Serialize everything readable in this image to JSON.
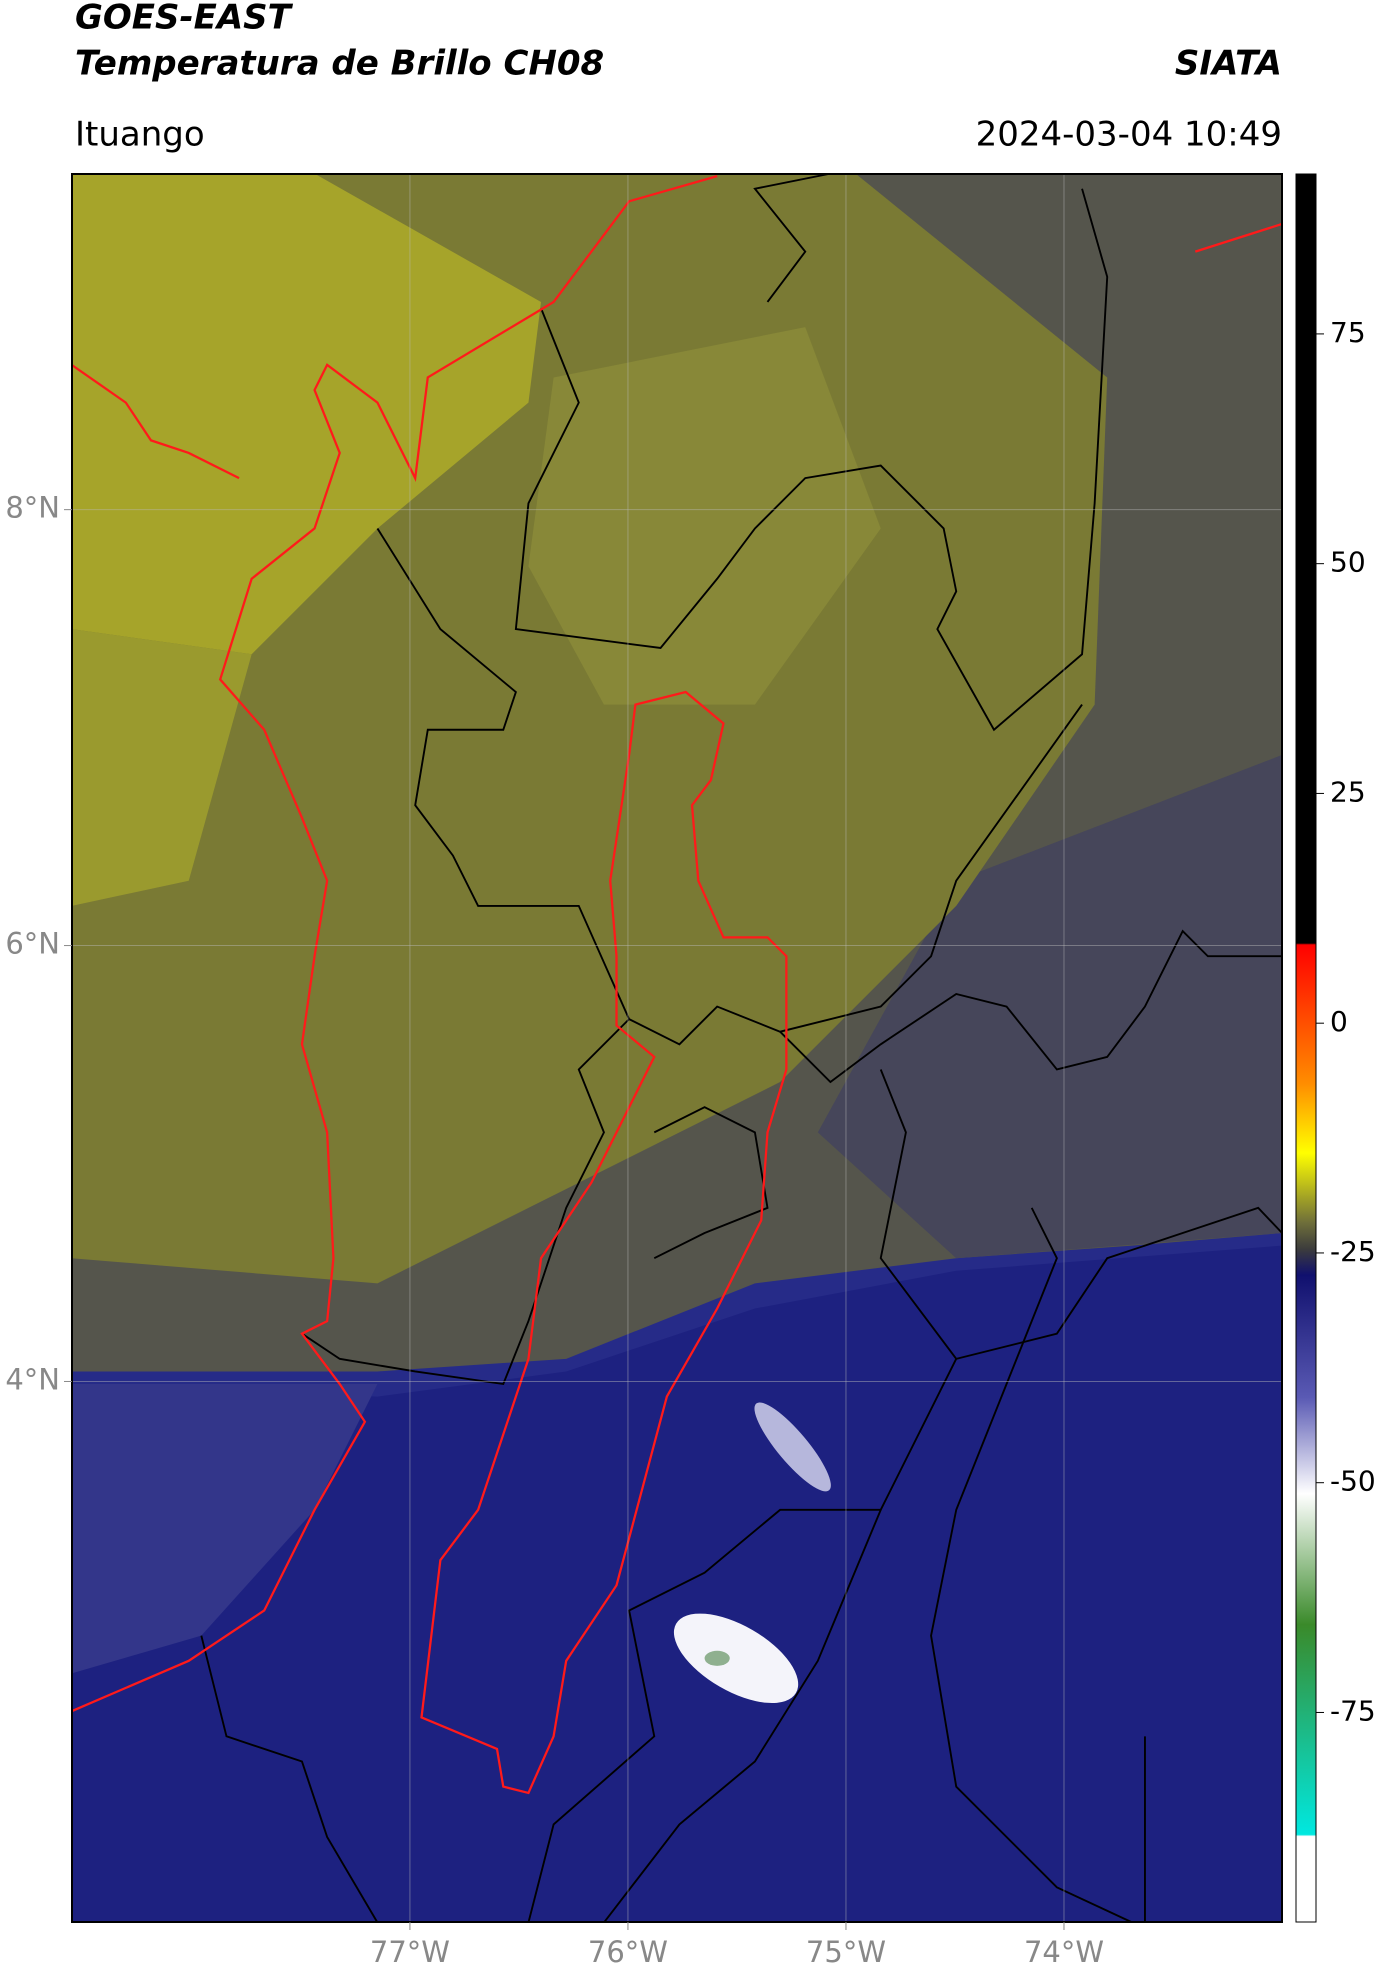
{
  "chart_data": {
    "type": "map",
    "title": "GOES-EAST",
    "subtitle": "Temperatura de Brillo CH08",
    "source": "SIATA",
    "location": "Ituango",
    "datetime": "2024-03-04 10:49",
    "xlim": [
      -78.55,
      -73.0
    ],
    "ylim": [
      1.52,
      9.54
    ],
    "xticks": [
      {
        "value": -77,
        "label": "77°W"
      },
      {
        "value": -76,
        "label": "76°W"
      },
      {
        "value": -75,
        "label": "75°W"
      },
      {
        "value": -74,
        "label": "74°W"
      }
    ],
    "yticks": [
      {
        "value": 8,
        "label": "8°N"
      },
      {
        "value": 6,
        "label": "6°N"
      },
      {
        "value": 4,
        "label": "4°N"
      }
    ],
    "grid": true,
    "colorbar": {
      "clim": [
        -97.8,
        92.4
      ],
      "ticks": [
        75,
        50,
        25,
        0,
        -25,
        -50,
        -75
      ]
    }
  }
}
